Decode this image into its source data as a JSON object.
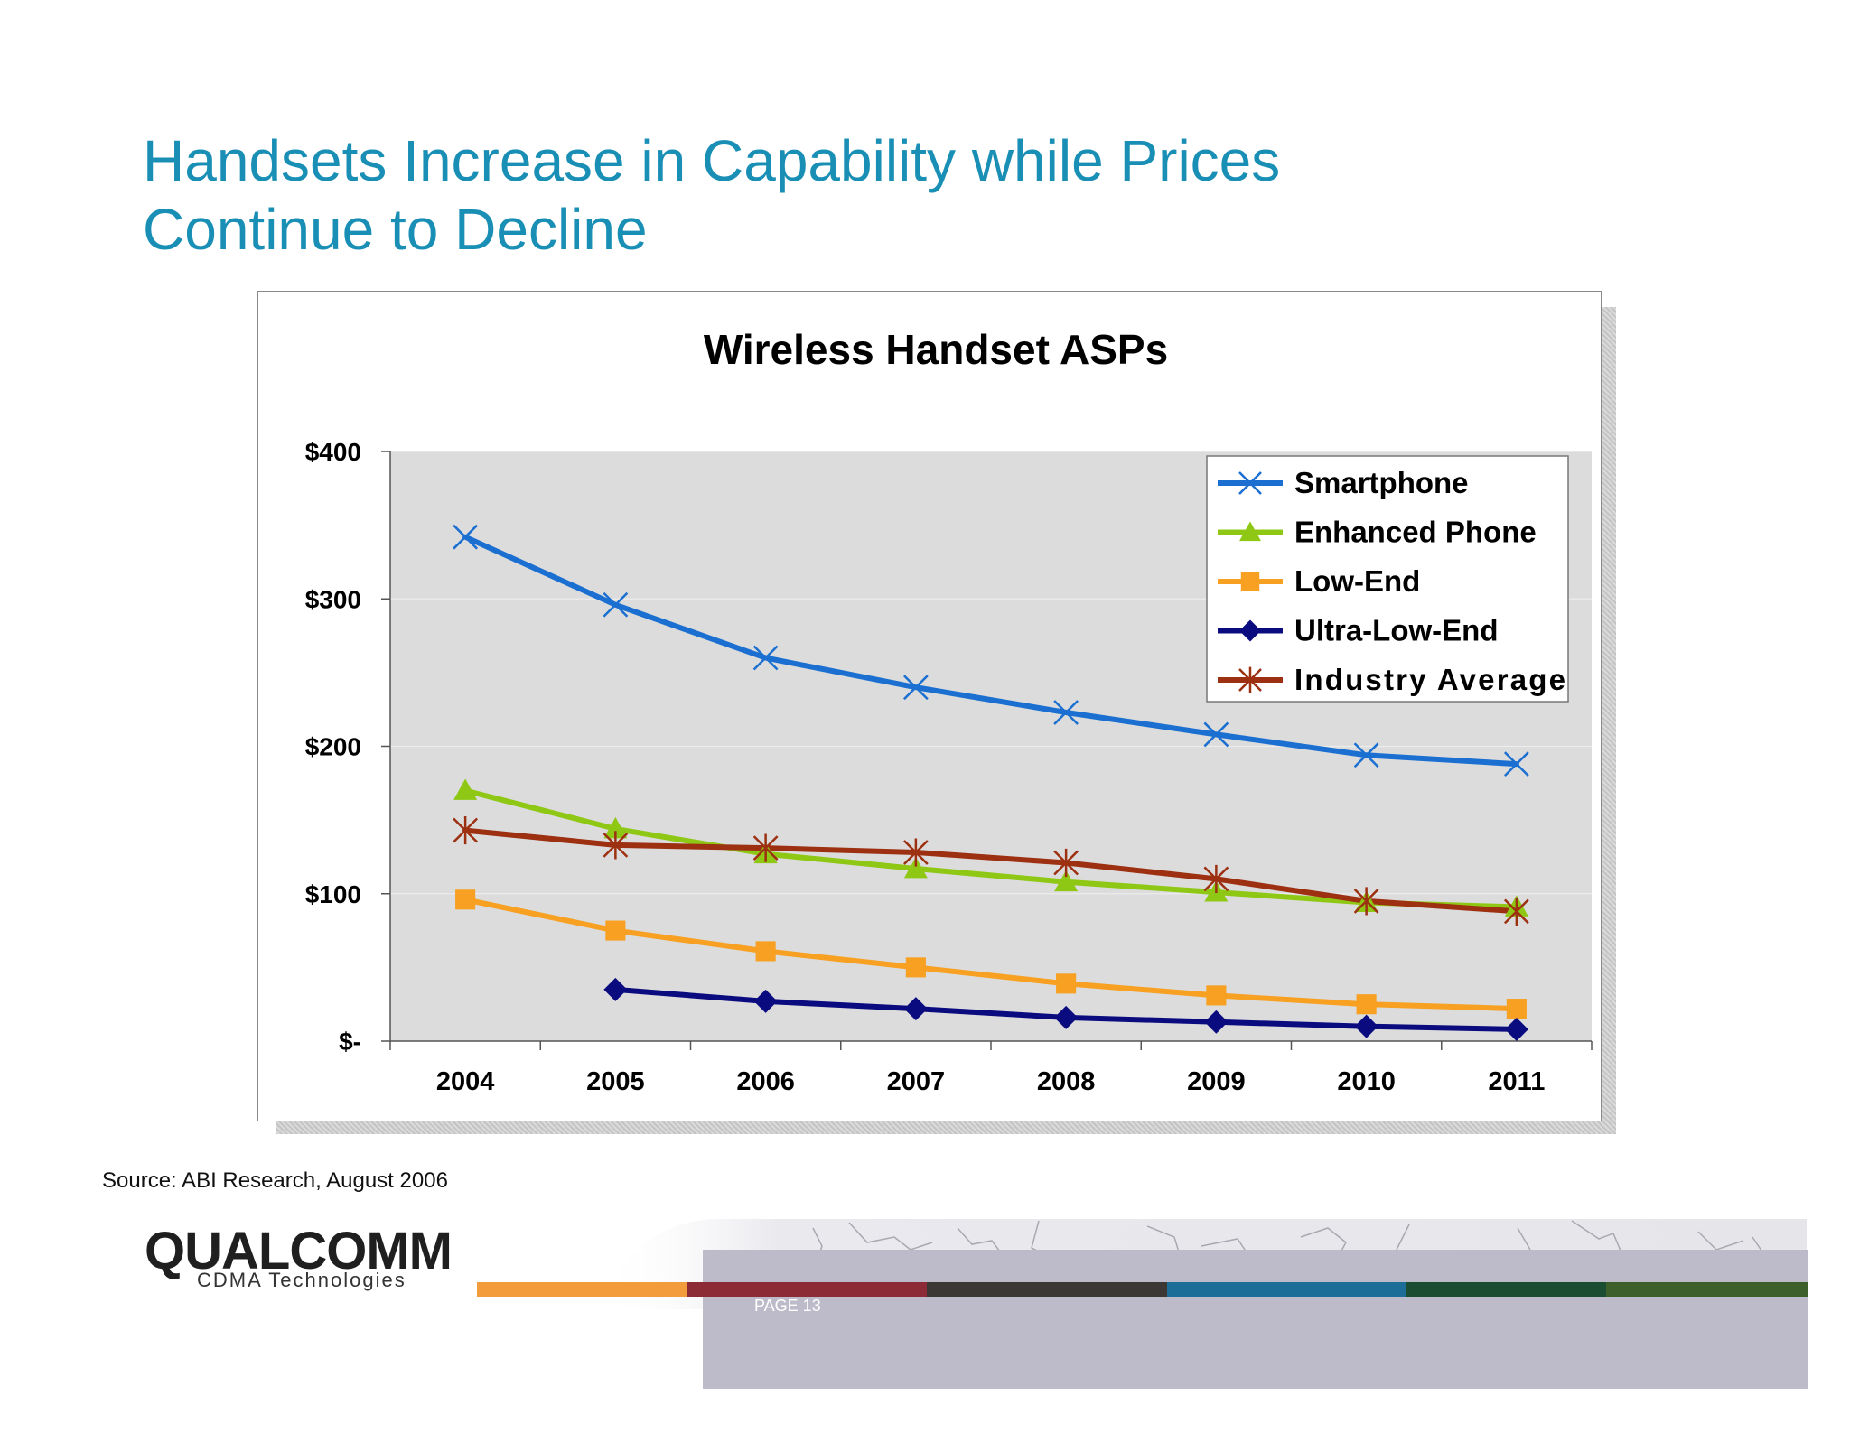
{
  "slide": {
    "title_lines": [
      "Handsets Increase in Capability while Prices",
      "Continue to Decline"
    ],
    "source": "Source: ABI Research, August 2006",
    "page_label": "PAGE 13",
    "logo_text": "QUALCOMM",
    "logo_subtitle": "CDMA Technologies"
  },
  "colors": {
    "title": "#1a8fb5",
    "plot_bg": "#dcdcdc",
    "footer_bar": [
      "#f39c3c",
      "#8c2a35",
      "#3a3734",
      "#1c6e99",
      "#1b4d33",
      "#3d5f2c"
    ]
  },
  "chart_data": {
    "type": "line",
    "title": "Wireless Handset ASPs",
    "categories": [
      "2004",
      "2005",
      "2006",
      "2007",
      "2008",
      "2009",
      "2010",
      "2011"
    ],
    "yticks": [
      0,
      100,
      200,
      300,
      400
    ],
    "ytick_labels": [
      "$-",
      "$100",
      "$200",
      "$300",
      "$400"
    ],
    "ylim": [
      0,
      400
    ],
    "grid": true,
    "legend_position": "top-right",
    "series": [
      {
        "name": "Smartphone",
        "color": "#1a6fd1",
        "marker": "x",
        "values": [
          342,
          296,
          260,
          240,
          223,
          208,
          194,
          188
        ]
      },
      {
        "name": "Enhanced Phone",
        "color": "#8fc814",
        "marker": "triangle",
        "values": [
          170,
          144,
          127,
          117,
          108,
          101,
          94,
          91
        ]
      },
      {
        "name": "Low-End",
        "color": "#f7a021",
        "marker": "square",
        "values": [
          96,
          75,
          61,
          50,
          39,
          31,
          25,
          22
        ]
      },
      {
        "name": "Ultra-Low-End",
        "color": "#0b0b80",
        "marker": "diamond",
        "values": [
          null,
          35,
          27,
          22,
          16,
          13,
          10,
          8
        ]
      },
      {
        "name": "Industry Average",
        "color": "#9c3010",
        "marker": "star",
        "values": [
          143,
          133,
          131,
          128,
          121,
          110,
          95,
          88
        ]
      }
    ]
  }
}
